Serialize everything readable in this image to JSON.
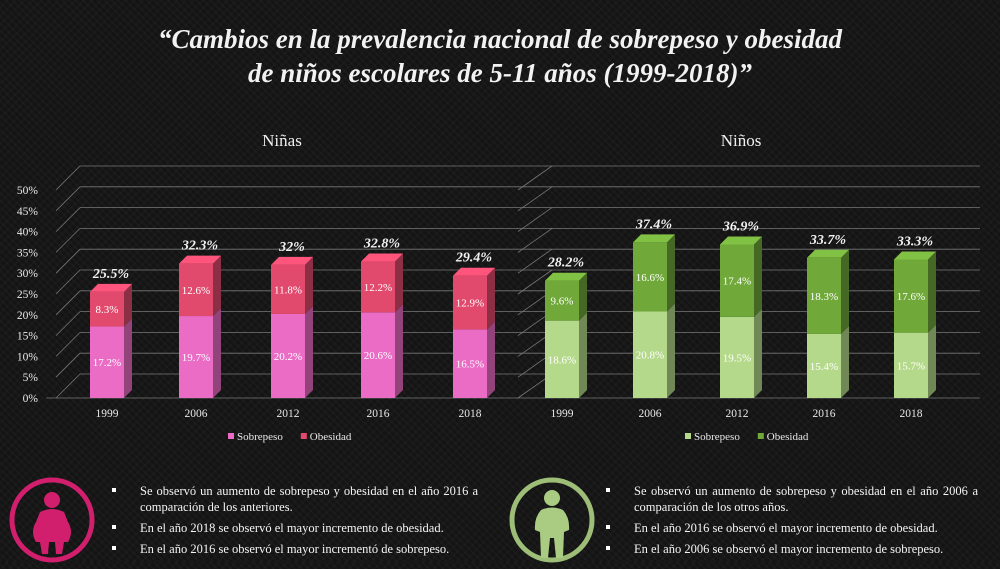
{
  "title": {
    "line1": "“Cambios en la prevalencia nacional de sobrepeso y obesidad",
    "line2": "de niños escolares de 5-11 años (1999-2018)”"
  },
  "chart_data": [
    {
      "type": "bar",
      "stacked": true,
      "three_d": true,
      "title": "Niñas",
      "categories": [
        "1999",
        "2006",
        "2012",
        "2016",
        "2018"
      ],
      "series": [
        {
          "name": "Sobrepeso",
          "values": [
            17.2,
            19.7,
            20.2,
            20.6,
            16.5
          ],
          "labels": [
            "17.2%",
            "19.7%",
            "20.2%",
            "20.6%",
            "16.5%"
          ],
          "color": "#ea6cc5"
        },
        {
          "name": "Obesidad",
          "values": [
            8.3,
            12.6,
            11.8,
            12.2,
            12.9
          ],
          "labels": [
            "8.3%",
            "12.6%",
            "11.8%",
            "12.2%",
            "12.9%"
          ],
          "color": "#e24a6d"
        }
      ],
      "totals": [
        "25.5%",
        "32.3%",
        "32%",
        "32.8%",
        "29.4%"
      ],
      "yticks": [
        "0%",
        "5%",
        "10%",
        "15%",
        "20%",
        "25%",
        "30%",
        "35%",
        "40%",
        "45%",
        "50%"
      ],
      "ylim": [
        0,
        50
      ],
      "grid": true,
      "legend": "bottom"
    },
    {
      "type": "bar",
      "stacked": true,
      "three_d": true,
      "title": "Niños",
      "categories": [
        "1999",
        "2006",
        "2012",
        "2016",
        "2018"
      ],
      "series": [
        {
          "name": "Sobrepeso",
          "values": [
            18.6,
            20.8,
            19.5,
            15.4,
            15.7
          ],
          "labels": [
            "18.6%",
            "20.8%",
            "19.5%",
            "15.4%",
            "15.7%"
          ],
          "color": "#b5d98a"
        },
        {
          "name": "Obesidad",
          "values": [
            9.6,
            16.6,
            17.4,
            18.3,
            17.6
          ],
          "labels": [
            "9.6%",
            "16.6%",
            "17.4%",
            "18.3%",
            "17.6%"
          ],
          "color": "#70a83a"
        }
      ],
      "totals": [
        "28.2%",
        "37.4%",
        "36.9%",
        "33.7%",
        "33.3%"
      ],
      "ylim": [
        0,
        50
      ],
      "grid": true,
      "legend": "bottom"
    }
  ],
  "notes": {
    "girls": [
      "Se observó un aumento de sobrepeso y obesidad en el año 2016 a comparación de los anteriores.",
      "En el año 2018 se observó el mayor incremento de obesidad.",
      "En el año 2016 se observó el mayor incrementó de sobrepeso."
    ],
    "boys": [
      "Se observó un aumento de sobrepeso y obesidad en el año 2006 a comparación de los otros años.",
      "En el año 2016 se observó el mayor incremento de obesidad.",
      "En el año 2006 se observó el mayor incremento de sobrepeso."
    ]
  },
  "icons": {
    "girl": {
      "name": "girl-silhouette-icon",
      "ring": "#d21f6d",
      "fill": "#d21f6d"
    },
    "boy": {
      "name": "boy-silhouette-icon",
      "ring": "#9ebe78",
      "fill": "#a9cc82"
    }
  }
}
